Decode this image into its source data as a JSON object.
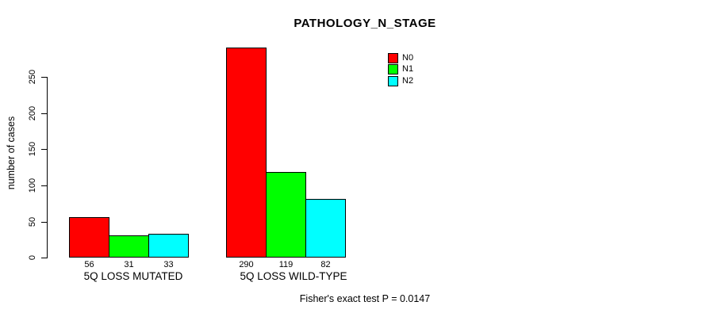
{
  "chart_data": {
    "type": "bar",
    "grouped": true,
    "title": "PATHOLOGY_N_STAGE",
    "ylabel": "number of cases",
    "footnote": "Fisher's exact test P = 0.0147",
    "categories": [
      "5Q LOSS MUTATED",
      "5Q LOSS WILD-TYPE"
    ],
    "series": [
      {
        "name": "N0",
        "color": "#ff0000",
        "values": [
          56,
          290
        ]
      },
      {
        "name": "N1",
        "color": "#00ff00",
        "values": [
          31,
          119
        ]
      },
      {
        "name": "N2",
        "color": "#00ffff",
        "values": [
          33,
          82
        ]
      }
    ],
    "yticks": [
      0,
      50,
      100,
      150,
      200,
      250
    ],
    "ylim": [
      0,
      290
    ],
    "bar_value_labels_shown": true,
    "legend_position": "top-right",
    "grid": false,
    "axis_color": "#000000",
    "bar_border_color": "#000000"
  }
}
